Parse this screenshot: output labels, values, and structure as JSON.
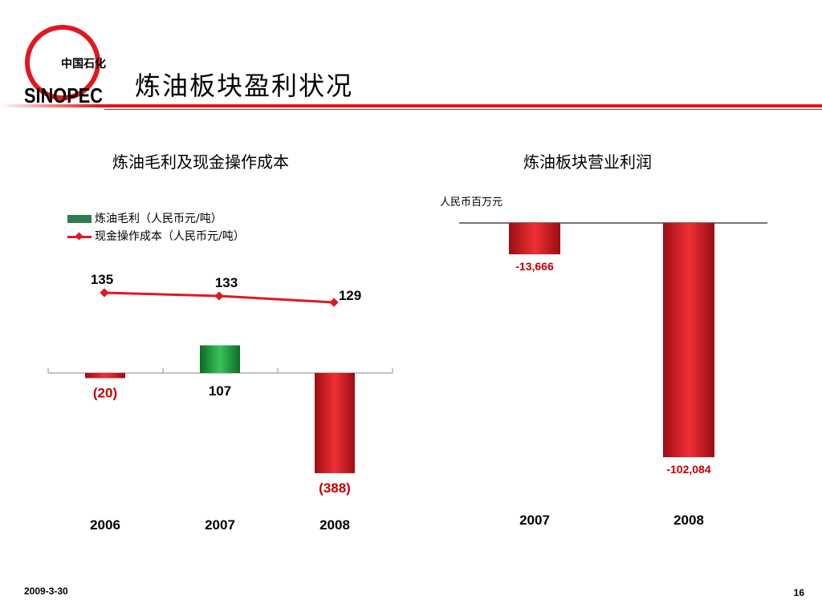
{
  "slide": {
    "title": "炼油板块盈利状况",
    "date": "2009-3-30",
    "page_number": "16",
    "logo_text": "中国石化",
    "logo_wordmark": "SINOPEC"
  },
  "colors": {
    "brand_red": "#e0191f",
    "bar_red": "#c8141b",
    "bar_green": "#1f9a3c",
    "label_red": "#c00000"
  },
  "chart_data": [
    {
      "type": "bar",
      "title": "炼油毛利及现金操作成本",
      "categories": [
        "2006",
        "2007",
        "2008"
      ],
      "series": [
        {
          "name": "炼油毛利（人民币元/吨）",
          "type": "bar",
          "values": [
            -20,
            107,
            -388
          ],
          "labels": [
            "(20)",
            "107",
            "(388)"
          ]
        },
        {
          "name": "现金操作成本（人民币元/吨）",
          "type": "line",
          "values": [
            135,
            133,
            129
          ],
          "labels": [
            "135",
            "133",
            "129"
          ]
        }
      ],
      "legend": "top-left",
      "grid": false
    },
    {
      "type": "bar",
      "title": "炼油板块营业利润",
      "unit": "人民币百万元",
      "categories": [
        "2007",
        "2008"
      ],
      "series": [
        {
          "name": "",
          "values": [
            -13666,
            -102084
          ],
          "labels": [
            "-13,666",
            "-102,084"
          ]
        }
      ],
      "legend": "none",
      "grid": false
    }
  ]
}
